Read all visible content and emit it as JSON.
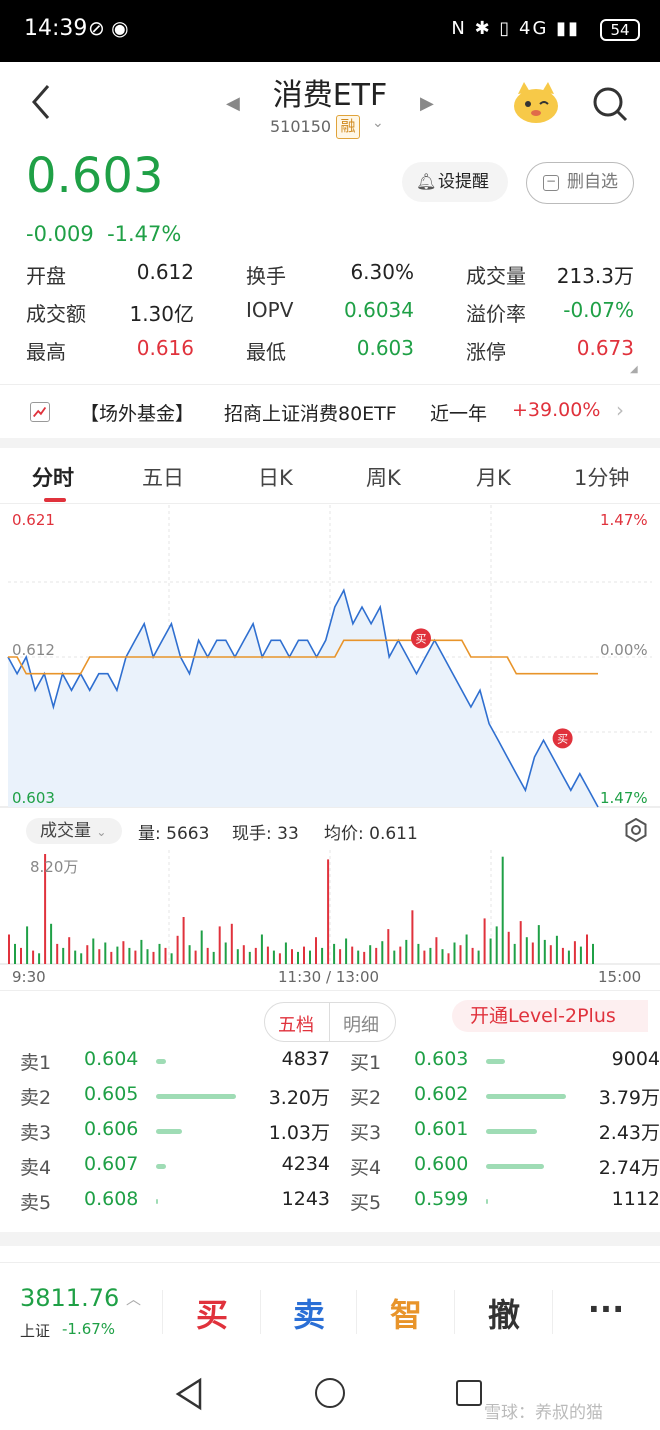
{
  "status_bar": {
    "time": "14:39",
    "network": "4G",
    "battery": "54"
  },
  "header": {
    "title": "消费ETF",
    "code": "510150",
    "margin_tag": "融"
  },
  "quote": {
    "price": "0.603",
    "change": "-0.009",
    "change_pct": "-1.47%",
    "alert_label": "设提醒",
    "watchlist_label": "删自选"
  },
  "stats": [
    {
      "label": "开盘",
      "value": "0.612",
      "color": "#222222"
    },
    {
      "label": "换手",
      "value": "6.30%",
      "color": "#222222"
    },
    {
      "label": "成交量",
      "value": "213.3万",
      "color": "#222222"
    },
    {
      "label": "成交额",
      "value": "1.30亿",
      "color": "#222222"
    },
    {
      "label": "IOPV",
      "value": "0.6034",
      "color": "#1fa046"
    },
    {
      "label": "溢价率",
      "value": "-0.07%",
      "color": "#1fa046"
    },
    {
      "label": "最高",
      "value": "0.616",
      "color": "#e0323c"
    },
    {
      "label": "最低",
      "value": "0.603",
      "color": "#1fa046"
    },
    {
      "label": "涨停",
      "value": "0.673",
      "color": "#e0323c"
    }
  ],
  "fund_row": {
    "tag": "【场外基金】",
    "name": "招商上证消费80ETF",
    "period": "近一年",
    "return": "+39.00%"
  },
  "tabs": [
    "分时",
    "五日",
    "日K",
    "周K",
    "月K",
    "1分钟"
  ],
  "chart_data": {
    "type": "line",
    "title": "",
    "y_left_max": "0.621",
    "y_left_mid": "0.612",
    "y_left_min": "0.603",
    "y_right_max": "1.47%",
    "y_right_mid": "0.00%",
    "y_right_min": "1.47%",
    "ylim": [
      0.603,
      0.621
    ],
    "price_series": [
      0.612,
      0.611,
      0.612,
      0.61,
      0.611,
      0.609,
      0.611,
      0.61,
      0.611,
      0.61,
      0.611,
      0.611,
      0.61,
      0.612,
      0.613,
      0.614,
      0.612,
      0.613,
      0.614,
      0.612,
      0.611,
      0.613,
      0.612,
      0.613,
      0.613,
      0.612,
      0.613,
      0.614,
      0.612,
      0.613,
      0.613,
      0.612,
      0.613,
      0.613,
      0.612,
      0.613,
      0.615,
      0.616,
      0.614,
      0.615,
      0.614,
      0.615,
      0.612,
      0.613,
      0.612,
      0.611,
      0.612,
      0.613,
      0.612,
      0.611,
      0.61,
      0.609,
      0.61,
      0.608,
      0.607,
      0.606,
      0.605,
      0.604,
      0.606,
      0.607,
      0.606,
      0.605,
      0.604,
      0.605,
      0.604,
      0.603
    ],
    "avg_series": [
      0.612,
      0.612,
      0.611,
      0.611,
      0.611,
      0.611,
      0.611,
      0.611,
      0.611,
      0.612,
      0.612,
      0.612,
      0.612,
      0.612,
      0.612,
      0.612,
      0.612,
      0.612,
      0.612,
      0.612,
      0.612,
      0.612,
      0.612,
      0.612,
      0.612,
      0.612,
      0.612,
      0.612,
      0.612,
      0.612,
      0.612,
      0.612,
      0.612,
      0.612,
      0.612,
      0.612,
      0.612,
      0.613,
      0.613,
      0.613,
      0.613,
      0.613,
      0.613,
      0.613,
      0.613,
      0.613,
      0.613,
      0.613,
      0.613,
      0.613,
      0.613,
      0.612,
      0.612,
      0.612,
      0.612,
      0.612,
      0.611,
      0.611,
      0.611,
      0.611,
      0.611,
      0.611,
      0.611,
      0.611,
      0.611,
      0.611
    ],
    "markers": [
      "买",
      "买"
    ],
    "volume": {
      "label": "成交量",
      "max_label": "8.20万",
      "qty_text": "量: 5663",
      "hand_text": "现手: 33",
      "avg_text": "均价: 0.611",
      "values": [
        2.2,
        1.5,
        1.2,
        2.8,
        1.0,
        0.8,
        8.2,
        3.0,
        1.5,
        1.2,
        2.0,
        1.0,
        0.8,
        1.4,
        1.9,
        1.1,
        1.6,
        0.9,
        1.3,
        1.7,
        1.2,
        1.0,
        1.8,
        1.1,
        0.9,
        1.5,
        1.2,
        0.8,
        2.1,
        3.5,
        1.4,
        1.0,
        2.5,
        1.2,
        0.9,
        2.8,
        1.6,
        3.0,
        1.1,
        1.4,
        0.9,
        1.2,
        2.2,
        1.3,
        1.0,
        0.8,
        1.6,
        1.1,
        0.9,
        1.3,
        1.0,
        2.0,
        1.2,
        7.8,
        1.5,
        1.1,
        1.9,
        1.3,
        1.0,
        0.9,
        1.4,
        1.2,
        1.7,
        2.6,
        1.0,
        1.3,
        1.8,
        4.0,
        1.5,
        1.0,
        1.2,
        2.0,
        1.1,
        0.8,
        1.6,
        1.4,
        2.2,
        1.2,
        1.0,
        3.4,
        1.9,
        2.8,
        8.0,
        2.4,
        1.5,
        3.2,
        2.0,
        1.6,
        2.9,
        1.8,
        1.4,
        2.1,
        1.2,
        1.0,
        1.7,
        1.3,
        2.2,
        1.5
      ],
      "colors": [
        "r",
        "g",
        "r",
        "g",
        "r",
        "g",
        "r",
        "g",
        "r",
        "g",
        "r",
        "g",
        "g",
        "r",
        "g",
        "r",
        "g",
        "r",
        "g",
        "r",
        "g",
        "r",
        "g",
        "g",
        "r",
        "g",
        "r",
        "g",
        "r",
        "r",
        "g",
        "r",
        "g",
        "r",
        "g",
        "r",
        "g",
        "r",
        "g",
        "r",
        "g",
        "r",
        "g",
        "r",
        "g",
        "r",
        "g",
        "r",
        "g",
        "r",
        "g",
        "r",
        "g",
        "r",
        "g",
        "r",
        "g",
        "r",
        "g",
        "r",
        "g",
        "r",
        "g",
        "r",
        "g",
        "r",
        "g",
        "r",
        "g",
        "r",
        "g",
        "r",
        "g",
        "r",
        "g",
        "r",
        "g",
        "r",
        "g",
        "r",
        "g",
        "g",
        "g",
        "r",
        "g",
        "r",
        "g",
        "r",
        "g",
        "g",
        "r",
        "g",
        "r",
        "g",
        "r",
        "g",
        "r",
        "g"
      ]
    },
    "time_labels": [
      "9:30",
      "11:30 / 13:00",
      "15:00"
    ]
  },
  "order_book": {
    "tab_active": "五档",
    "tab_inactive": "明细",
    "level2_label": "开通Level-2Plus",
    "asks": [
      {
        "label": "卖1",
        "price": "0.604",
        "vol": "4837",
        "bar": 0.13
      },
      {
        "label": "卖2",
        "price": "0.605",
        "vol": "3.20万",
        "bar": 1.0
      },
      {
        "label": "卖3",
        "price": "0.606",
        "vol": "1.03万",
        "bar": 0.33
      },
      {
        "label": "卖4",
        "price": "0.607",
        "vol": "4234",
        "bar": 0.12
      },
      {
        "label": "卖5",
        "price": "0.608",
        "vol": "1243",
        "bar": 0.03
      }
    ],
    "bids": [
      {
        "label": "买1",
        "price": "0.603",
        "vol": "9004",
        "bar": 0.24
      },
      {
        "label": "买2",
        "price": "0.602",
        "vol": "3.79万",
        "bar": 1.0
      },
      {
        "label": "买3",
        "price": "0.601",
        "vol": "2.43万",
        "bar": 0.64
      },
      {
        "label": "买4",
        "price": "0.600",
        "vol": "2.74万",
        "bar": 0.72
      },
      {
        "label": "买5",
        "price": "0.599",
        "vol": "1112",
        "bar": 0.03
      }
    ]
  },
  "trade_bar": {
    "index_value": "3811.76",
    "index_name": "上证",
    "index_change": "-1.67%",
    "buy": "买",
    "sell": "卖",
    "smart": "智",
    "cancel": "撤",
    "more": "···"
  },
  "watermark": "雪球：养叔的猫"
}
